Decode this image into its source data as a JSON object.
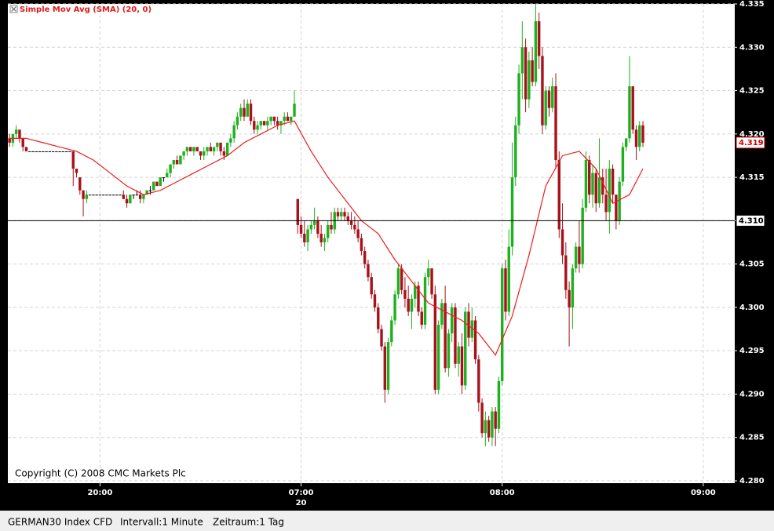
{
  "chart_data": {
    "type": "candlestick",
    "legend_label": "Simple Mov Avg (SMA) (20, 0)",
    "copyright": "Copyright (C) 2008 CMC Markets Plc",
    "date_label": "20",
    "footer": [
      "GERMAN30 Index CFD",
      "Intervall:1 Minute",
      "Zeitraum:1 Tag"
    ],
    "up_color": "#1fb01f",
    "down_color": "#a8121b",
    "flat_color": "#000000",
    "sma_color": "#ee1c1c",
    "grid": true,
    "xlim": [
      -0.5,
      216.4
    ],
    "xticks": [
      {
        "value": 27,
        "label": "20:00"
      },
      {
        "value": 87,
        "label": "07:00"
      },
      {
        "value": 147,
        "label": "08:00"
      },
      {
        "value": 207,
        "label": "09:00"
      }
    ],
    "ylim": [
      4.28,
      4.335
    ],
    "yticks": [
      {
        "value": 4.28,
        "label": "4.280"
      },
      {
        "value": 4.285,
        "label": "4.285"
      },
      {
        "value": 4.29,
        "label": "4.290"
      },
      {
        "value": 4.295,
        "label": "4.295"
      },
      {
        "value": 4.3,
        "label": "4.300"
      },
      {
        "value": 4.305,
        "label": "4.305"
      },
      {
        "value": 4.31,
        "label": "4.310"
      },
      {
        "value": 4.315,
        "label": "4.315"
      },
      {
        "value": 4.32,
        "label": "4.320"
      },
      {
        "value": 4.325,
        "label": "4.325"
      },
      {
        "value": 4.33,
        "label": "4.330"
      },
      {
        "value": 4.335,
        "label": "4.335"
      }
    ],
    "ref_line": {
      "value": 4.31,
      "label": "4.310"
    },
    "last_price": {
      "value": 4.319,
      "label": "4.319"
    },
    "candles": [
      [
        4.3195,
        4.32,
        4.3185,
        4.319
      ],
      [
        4.319,
        4.32,
        4.3185,
        4.32
      ],
      [
        4.32,
        4.321,
        4.3195,
        4.3205
      ],
      [
        4.3205,
        4.3205,
        4.319,
        4.3195
      ],
      [
        4.3195,
        4.3195,
        4.318,
        4.3185
      ],
      [
        4.3185,
        4.3185,
        4.318,
        4.318
      ],
      [
        4.318,
        4.318,
        4.318,
        4.318
      ],
      [
        4.318,
        4.318,
        4.318,
        4.318
      ],
      [
        4.318,
        4.318,
        4.318,
        4.318
      ],
      [
        4.318,
        4.318,
        4.318,
        4.318
      ],
      [
        4.318,
        4.318,
        4.318,
        4.318
      ],
      [
        4.318,
        4.318,
        4.318,
        4.318
      ],
      [
        4.318,
        4.318,
        4.318,
        4.318
      ],
      [
        4.318,
        4.318,
        4.318,
        4.318
      ],
      [
        4.318,
        4.318,
        4.318,
        4.318
      ],
      [
        4.318,
        4.318,
        4.318,
        4.318
      ],
      [
        4.318,
        4.318,
        4.318,
        4.318
      ],
      [
        4.318,
        4.318,
        4.318,
        4.318
      ],
      [
        4.318,
        4.318,
        4.318,
        4.318
      ],
      [
        4.318,
        4.318,
        4.314,
        4.316
      ],
      [
        4.316,
        4.316,
        4.315,
        4.3155
      ],
      [
        4.315,
        4.315,
        4.313,
        4.3135
      ],
      [
        4.3135,
        4.3135,
        4.3105,
        4.3125
      ],
      [
        4.3125,
        4.3135,
        4.312,
        4.313
      ],
      [
        4.313,
        4.313,
        4.313,
        4.313
      ],
      [
        4.313,
        4.313,
        4.313,
        4.313
      ],
      [
        4.313,
        4.313,
        4.313,
        4.313
      ],
      [
        4.313,
        4.313,
        4.313,
        4.313
      ],
      [
        4.313,
        4.313,
        4.313,
        4.313
      ],
      [
        4.313,
        4.313,
        4.313,
        4.313
      ],
      [
        4.313,
        4.313,
        4.313,
        4.313
      ],
      [
        4.313,
        4.313,
        4.313,
        4.313
      ],
      [
        4.313,
        4.313,
        4.313,
        4.313
      ],
      [
        4.313,
        4.313,
        4.313,
        4.313
      ],
      [
        4.313,
        4.3135,
        4.3125,
        4.3125
      ],
      [
        4.3125,
        4.313,
        4.3115,
        4.312
      ],
      [
        4.312,
        4.313,
        4.312,
        4.313
      ],
      [
        4.313,
        4.313,
        4.3125,
        4.313
      ],
      [
        4.313,
        4.3135,
        4.313,
        4.313
      ],
      [
        4.313,
        4.3135,
        4.312,
        4.3125
      ],
      [
        4.3125,
        4.313,
        4.312,
        4.313
      ],
      [
        4.313,
        4.3135,
        4.313,
        4.3135
      ],
      [
        4.3135,
        4.314,
        4.313,
        4.3135
      ],
      [
        4.3135,
        4.3145,
        4.3135,
        4.3145
      ],
      [
        4.3145,
        4.3145,
        4.314,
        4.314
      ],
      [
        4.314,
        4.315,
        4.314,
        4.315
      ],
      [
        4.315,
        4.315,
        4.3145,
        4.315
      ],
      [
        4.315,
        4.316,
        4.315,
        4.3155
      ],
      [
        4.3155,
        4.3165,
        4.315,
        4.3165
      ],
      [
        4.3165,
        4.317,
        4.316,
        4.317
      ],
      [
        4.317,
        4.3175,
        4.3165,
        4.3165
      ],
      [
        4.3165,
        4.3175,
        4.3165,
        4.3175
      ],
      [
        4.3175,
        4.318,
        4.317,
        4.318
      ],
      [
        4.318,
        4.3185,
        4.3175,
        4.3185
      ],
      [
        4.3185,
        4.3185,
        4.318,
        4.318
      ],
      [
        4.318,
        4.3185,
        4.3175,
        4.3185
      ],
      [
        4.3185,
        4.3185,
        4.318,
        4.318
      ],
      [
        4.318,
        4.318,
        4.317,
        4.3175
      ],
      [
        4.3175,
        4.3185,
        4.317,
        4.318
      ],
      [
        4.318,
        4.3185,
        4.3175,
        4.3185
      ],
      [
        4.3185,
        4.319,
        4.318,
        4.318
      ],
      [
        4.318,
        4.3185,
        4.3175,
        4.3185
      ],
      [
        4.3185,
        4.319,
        4.318,
        4.319
      ],
      [
        4.319,
        4.319,
        4.3175,
        4.318
      ],
      [
        4.318,
        4.3185,
        4.317,
        4.3175
      ],
      [
        4.3175,
        4.319,
        4.3175,
        4.319
      ],
      [
        4.319,
        4.32,
        4.3185,
        4.3195
      ],
      [
        4.3195,
        4.3215,
        4.319,
        4.321
      ],
      [
        4.321,
        4.3225,
        4.3205,
        4.322
      ],
      [
        4.322,
        4.3235,
        4.3215,
        4.323
      ],
      [
        4.323,
        4.324,
        4.3215,
        4.322
      ],
      [
        4.322,
        4.324,
        4.322,
        4.3235
      ],
      [
        4.3235,
        4.324,
        4.321,
        4.3215
      ],
      [
        4.3215,
        4.322,
        4.32,
        4.3205
      ],
      [
        4.3205,
        4.3215,
        4.32,
        4.321
      ],
      [
        4.321,
        4.3215,
        4.3205,
        4.3215
      ],
      [
        4.3215,
        4.3215,
        4.321,
        4.321
      ],
      [
        4.321,
        4.322,
        4.3205,
        4.3215
      ],
      [
        4.3215,
        4.322,
        4.321,
        4.322
      ],
      [
        4.322,
        4.322,
        4.321,
        4.3215
      ],
      [
        4.3215,
        4.322,
        4.3205,
        4.321
      ],
      [
        4.321,
        4.3215,
        4.32,
        4.3215
      ],
      [
        4.3215,
        4.3225,
        4.321,
        4.322
      ],
      [
        4.322,
        4.3225,
        4.3215,
        4.3215
      ],
      [
        4.3215,
        4.322,
        4.321,
        4.322
      ],
      [
        4.322,
        4.325,
        4.322,
        4.3235
      ],
      [
        4.3125,
        4.3125,
        4.3085,
        4.3095
      ],
      [
        4.3095,
        4.3105,
        4.308,
        4.3085
      ],
      [
        4.3085,
        4.31,
        4.307,
        4.3075
      ],
      [
        4.3075,
        4.3095,
        4.3065,
        4.309
      ],
      [
        4.309,
        4.31,
        4.3085,
        4.3095
      ],
      [
        4.3095,
        4.3115,
        4.309,
        4.31
      ],
      [
        4.31,
        4.3105,
        4.308,
        4.3085
      ],
      [
        4.3085,
        4.3095,
        4.307,
        4.3075
      ],
      [
        4.3075,
        4.3085,
        4.3065,
        4.308
      ],
      [
        4.308,
        4.31,
        4.3075,
        4.3095
      ],
      [
        4.3095,
        4.311,
        4.3085,
        4.309
      ],
      [
        4.309,
        4.3115,
        4.3085,
        4.311
      ],
      [
        4.311,
        4.3115,
        4.31,
        4.3105
      ],
      [
        4.3105,
        4.3115,
        4.31,
        4.311
      ],
      [
        4.311,
        4.3115,
        4.31,
        4.3105
      ],
      [
        4.3105,
        4.311,
        4.3095,
        4.31
      ],
      [
        4.31,
        4.311,
        4.309,
        4.3095
      ],
      [
        4.3095,
        4.3105,
        4.3085,
        4.309
      ],
      [
        4.309,
        4.31,
        4.3075,
        4.308
      ],
      [
        4.308,
        4.3085,
        4.306,
        4.3065
      ],
      [
        4.3065,
        4.307,
        4.3045,
        4.305
      ],
      [
        4.305,
        4.3055,
        4.303,
        4.3035
      ],
      [
        4.3035,
        4.304,
        4.301,
        4.3015
      ],
      [
        4.3015,
        4.302,
        4.2995,
        4.3
      ],
      [
        4.3,
        4.3005,
        4.297,
        4.2975
      ],
      [
        4.2975,
        4.298,
        4.295,
        4.2955
      ],
      [
        4.2955,
        4.296,
        4.289,
        4.2905
      ],
      [
        4.2905,
        4.2965,
        4.29,
        4.296
      ],
      [
        4.296,
        4.299,
        4.2955,
        4.2985
      ],
      [
        4.2985,
        4.302,
        4.298,
        4.3015
      ],
      [
        4.3015,
        4.305,
        4.301,
        4.3045
      ],
      [
        4.3045,
        4.305,
        4.3015,
        4.302
      ],
      [
        4.302,
        4.3035,
        4.3,
        4.301
      ],
      [
        4.301,
        4.3025,
        4.299,
        4.2995
      ],
      [
        4.2995,
        4.3015,
        4.2975,
        4.301
      ],
      [
        4.301,
        4.303,
        4.3,
        4.3025
      ],
      [
        4.3025,
        4.303,
        4.299,
        4.2995
      ],
      [
        4.2995,
        4.3,
        4.2975,
        4.298
      ],
      [
        4.298,
        4.304,
        4.2975,
        4.3035
      ],
      [
        4.3035,
        4.3055,
        4.3025,
        4.3045
      ],
      [
        4.3045,
        4.3045,
        4.301,
        4.3015
      ],
      [
        4.3015,
        4.3025,
        4.29,
        4.2905
      ],
      [
        4.2905,
        4.2985,
        4.29,
        4.298
      ],
      [
        4.298,
        4.301,
        4.2975,
        4.3005
      ],
      [
        4.3005,
        4.3025,
        4.2925,
        4.293
      ],
      [
        4.293,
        4.2975,
        4.292,
        4.297
      ],
      [
        4.297,
        4.3005,
        4.296,
        4.3
      ],
      [
        4.3,
        4.3005,
        4.293,
        4.2935
      ],
      [
        4.2935,
        4.296,
        4.292,
        4.2955
      ],
      [
        4.2955,
        4.297,
        4.29,
        4.291
      ],
      [
        4.291,
        4.3,
        4.2905,
        4.2995
      ],
      [
        4.2995,
        4.3005,
        4.2955,
        4.2965
      ],
      [
        4.2965,
        4.3,
        4.296,
        4.2985
      ],
      [
        4.2985,
        4.299,
        4.2935,
        4.294
      ],
      [
        4.294,
        4.2945,
        4.288,
        4.289
      ],
      [
        4.289,
        4.2895,
        4.285,
        4.2855
      ],
      [
        4.2855,
        4.288,
        4.284,
        4.287
      ],
      [
        4.287,
        4.2875,
        4.2845,
        4.285
      ],
      [
        4.285,
        4.2885,
        4.284,
        4.288
      ],
      [
        4.288,
        4.2885,
        4.284,
        4.286
      ],
      [
        4.286,
        4.292,
        4.2855,
        4.2915
      ],
      [
        4.2915,
        4.305,
        4.291,
        4.3045
      ],
      [
        4.3045,
        4.3055,
        4.2985,
        4.2995
      ],
      [
        4.2995,
        4.309,
        4.299,
        4.307
      ],
      [
        4.307,
        4.319,
        4.306,
        4.315
      ],
      [
        4.315,
        4.322,
        4.314,
        4.321
      ],
      [
        4.321,
        4.328,
        4.32,
        4.327
      ],
      [
        4.327,
        4.333,
        4.324,
        4.33
      ],
      [
        4.33,
        4.331,
        4.3225,
        4.324
      ],
      [
        4.324,
        4.3295,
        4.323,
        4.3285
      ],
      [
        4.3285,
        4.33,
        4.3255,
        4.326
      ],
      [
        4.326,
        4.335,
        4.3255,
        4.333
      ],
      [
        4.333,
        4.334,
        4.3275,
        4.329
      ],
      [
        4.329,
        4.33,
        4.32,
        4.321
      ],
      [
        4.321,
        4.3255,
        4.3205,
        4.325
      ],
      [
        4.325,
        4.3255,
        4.322,
        4.323
      ],
      [
        4.323,
        4.3265,
        4.3225,
        4.3255
      ],
      [
        4.3255,
        4.327,
        4.316,
        4.317
      ],
      [
        4.317,
        4.318,
        4.308,
        4.309
      ],
      [
        4.309,
        4.312,
        4.305,
        4.306
      ],
      [
        4.306,
        4.3075,
        4.301,
        4.302
      ],
      [
        4.302,
        4.303,
        4.2955,
        4.3
      ],
      [
        4.3,
        4.305,
        4.2975,
        4.3045
      ],
      [
        4.3045,
        4.3075,
        4.304,
        4.307
      ],
      [
        4.307,
        4.31,
        4.304,
        4.305
      ],
      [
        4.305,
        4.3125,
        4.3045,
        4.3115
      ],
      [
        4.3115,
        4.318,
        4.311,
        4.317
      ],
      [
        4.317,
        4.3175,
        4.312,
        4.313
      ],
      [
        4.313,
        4.3165,
        4.3115,
        4.3155
      ],
      [
        4.3155,
        4.316,
        4.311,
        4.312
      ],
      [
        4.312,
        4.3195,
        4.3115,
        4.315
      ],
      [
        4.315,
        4.316,
        4.312,
        4.313
      ],
      [
        4.313,
        4.316,
        4.31,
        4.311
      ],
      [
        4.311,
        4.317,
        4.3085,
        4.316
      ],
      [
        4.316,
        4.3165,
        4.312,
        4.313
      ],
      [
        4.313,
        4.313,
        4.309,
        4.31
      ],
      [
        4.31,
        4.315,
        4.3095,
        4.3145
      ],
      [
        4.3145,
        4.319,
        4.314,
        4.3185
      ],
      [
        4.3185,
        4.3195,
        4.318,
        4.3195
      ],
      [
        4.3195,
        4.329,
        4.319,
        4.3255
      ],
      [
        4.3255,
        4.3255,
        4.32,
        4.3205
      ],
      [
        4.3205,
        4.321,
        4.317,
        4.3185
      ],
      [
        4.3185,
        4.3215,
        4.318,
        4.321
      ],
      [
        4.321,
        4.3215,
        4.3185,
        4.319
      ]
    ],
    "sma": {
      "x": [
        0,
        5,
        10,
        15,
        20,
        25,
        30,
        35,
        40,
        45,
        50,
        55,
        60,
        65,
        70,
        75,
        80,
        85,
        90,
        95,
        100,
        105,
        110,
        115,
        120,
        125,
        130,
        135,
        140,
        145,
        150,
        155,
        160,
        165,
        170,
        175,
        180,
        185,
        189
      ],
      "values": [
        4.3195,
        4.3195,
        4.319,
        4.3185,
        4.318,
        4.317,
        4.3155,
        4.314,
        4.313,
        4.3135,
        4.3145,
        4.3155,
        4.3165,
        4.3175,
        4.319,
        4.32,
        4.321,
        4.3215,
        4.318,
        4.315,
        4.3125,
        4.31,
        4.3085,
        4.3055,
        4.303,
        4.3005,
        4.2995,
        4.2985,
        4.297,
        4.2945,
        4.299,
        4.306,
        4.314,
        4.3175,
        4.318,
        4.316,
        4.312,
        4.313,
        4.316
      ]
    }
  }
}
